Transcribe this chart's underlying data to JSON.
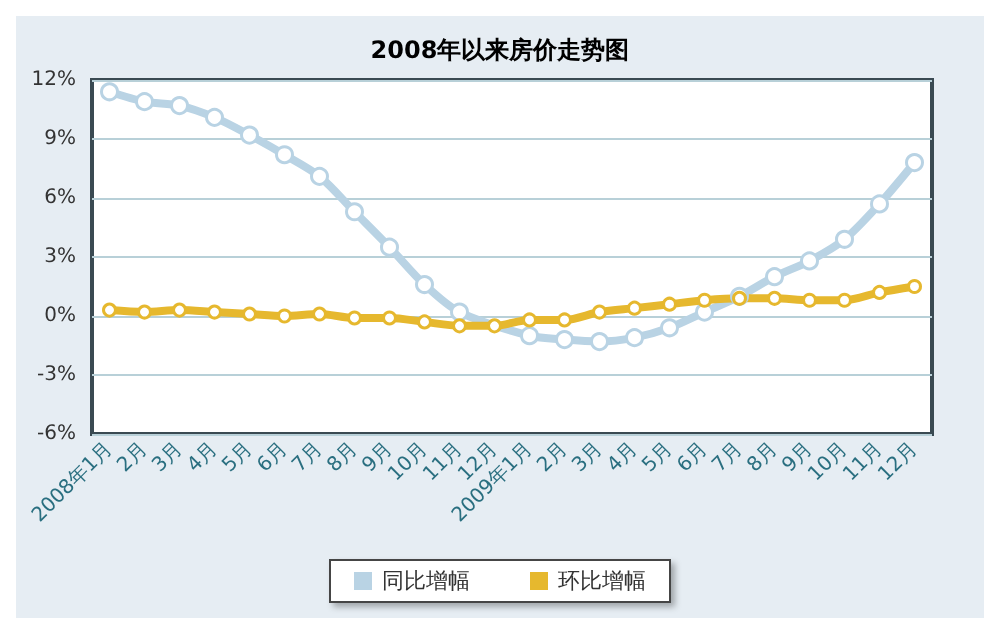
{
  "chart_data": {
    "type": "line",
    "title": "2008年以来房价走势图",
    "categories": [
      "2008年1月",
      "2月",
      "3月",
      "4月",
      "5月",
      "6月",
      "7月",
      "8月",
      "9月",
      "10月",
      "11月",
      "12月",
      "2009年1月",
      "2月",
      "3月",
      "4月",
      "5月",
      "6月",
      "7月",
      "8月",
      "9月",
      "10月",
      "11月",
      "12月"
    ],
    "series": [
      {
        "name": "同比增幅",
        "color": "#b9d3e4",
        "values": [
          11.4,
          10.9,
          10.7,
          10.1,
          9.2,
          8.2,
          7.1,
          5.3,
          3.5,
          1.6,
          0.2,
          null,
          -1.0,
          -1.2,
          -1.3,
          -1.1,
          -0.6,
          0.2,
          1.0,
          2.0,
          2.8,
          3.9,
          5.7,
          7.8
        ]
      },
      {
        "name": "环比增幅",
        "color": "#e6b82e",
        "values": [
          0.3,
          0.2,
          0.3,
          0.2,
          0.1,
          0,
          0.1,
          -0.1,
          -0.1,
          -0.3,
          -0.5,
          -0.5,
          -0.2,
          -0.2,
          0.2,
          0.4,
          0.6,
          0.8,
          0.9,
          0.9,
          0.8,
          0.8,
          1.2,
          1.5
        ]
      }
    ],
    "ylim": [
      -6,
      12
    ],
    "yticks": [
      {
        "value": -6,
        "label": "-6%"
      },
      {
        "value": -3,
        "label": "-3%"
      },
      {
        "value": 0,
        "label": "0%"
      },
      {
        "value": 3,
        "label": "3%"
      },
      {
        "value": 6,
        "label": "6%"
      },
      {
        "value": 9,
        "label": "9%"
      },
      {
        "value": 12,
        "label": "12%"
      }
    ],
    "grid": "y",
    "legend": "bottom",
    "marker": "circle",
    "line_style": "solid"
  }
}
